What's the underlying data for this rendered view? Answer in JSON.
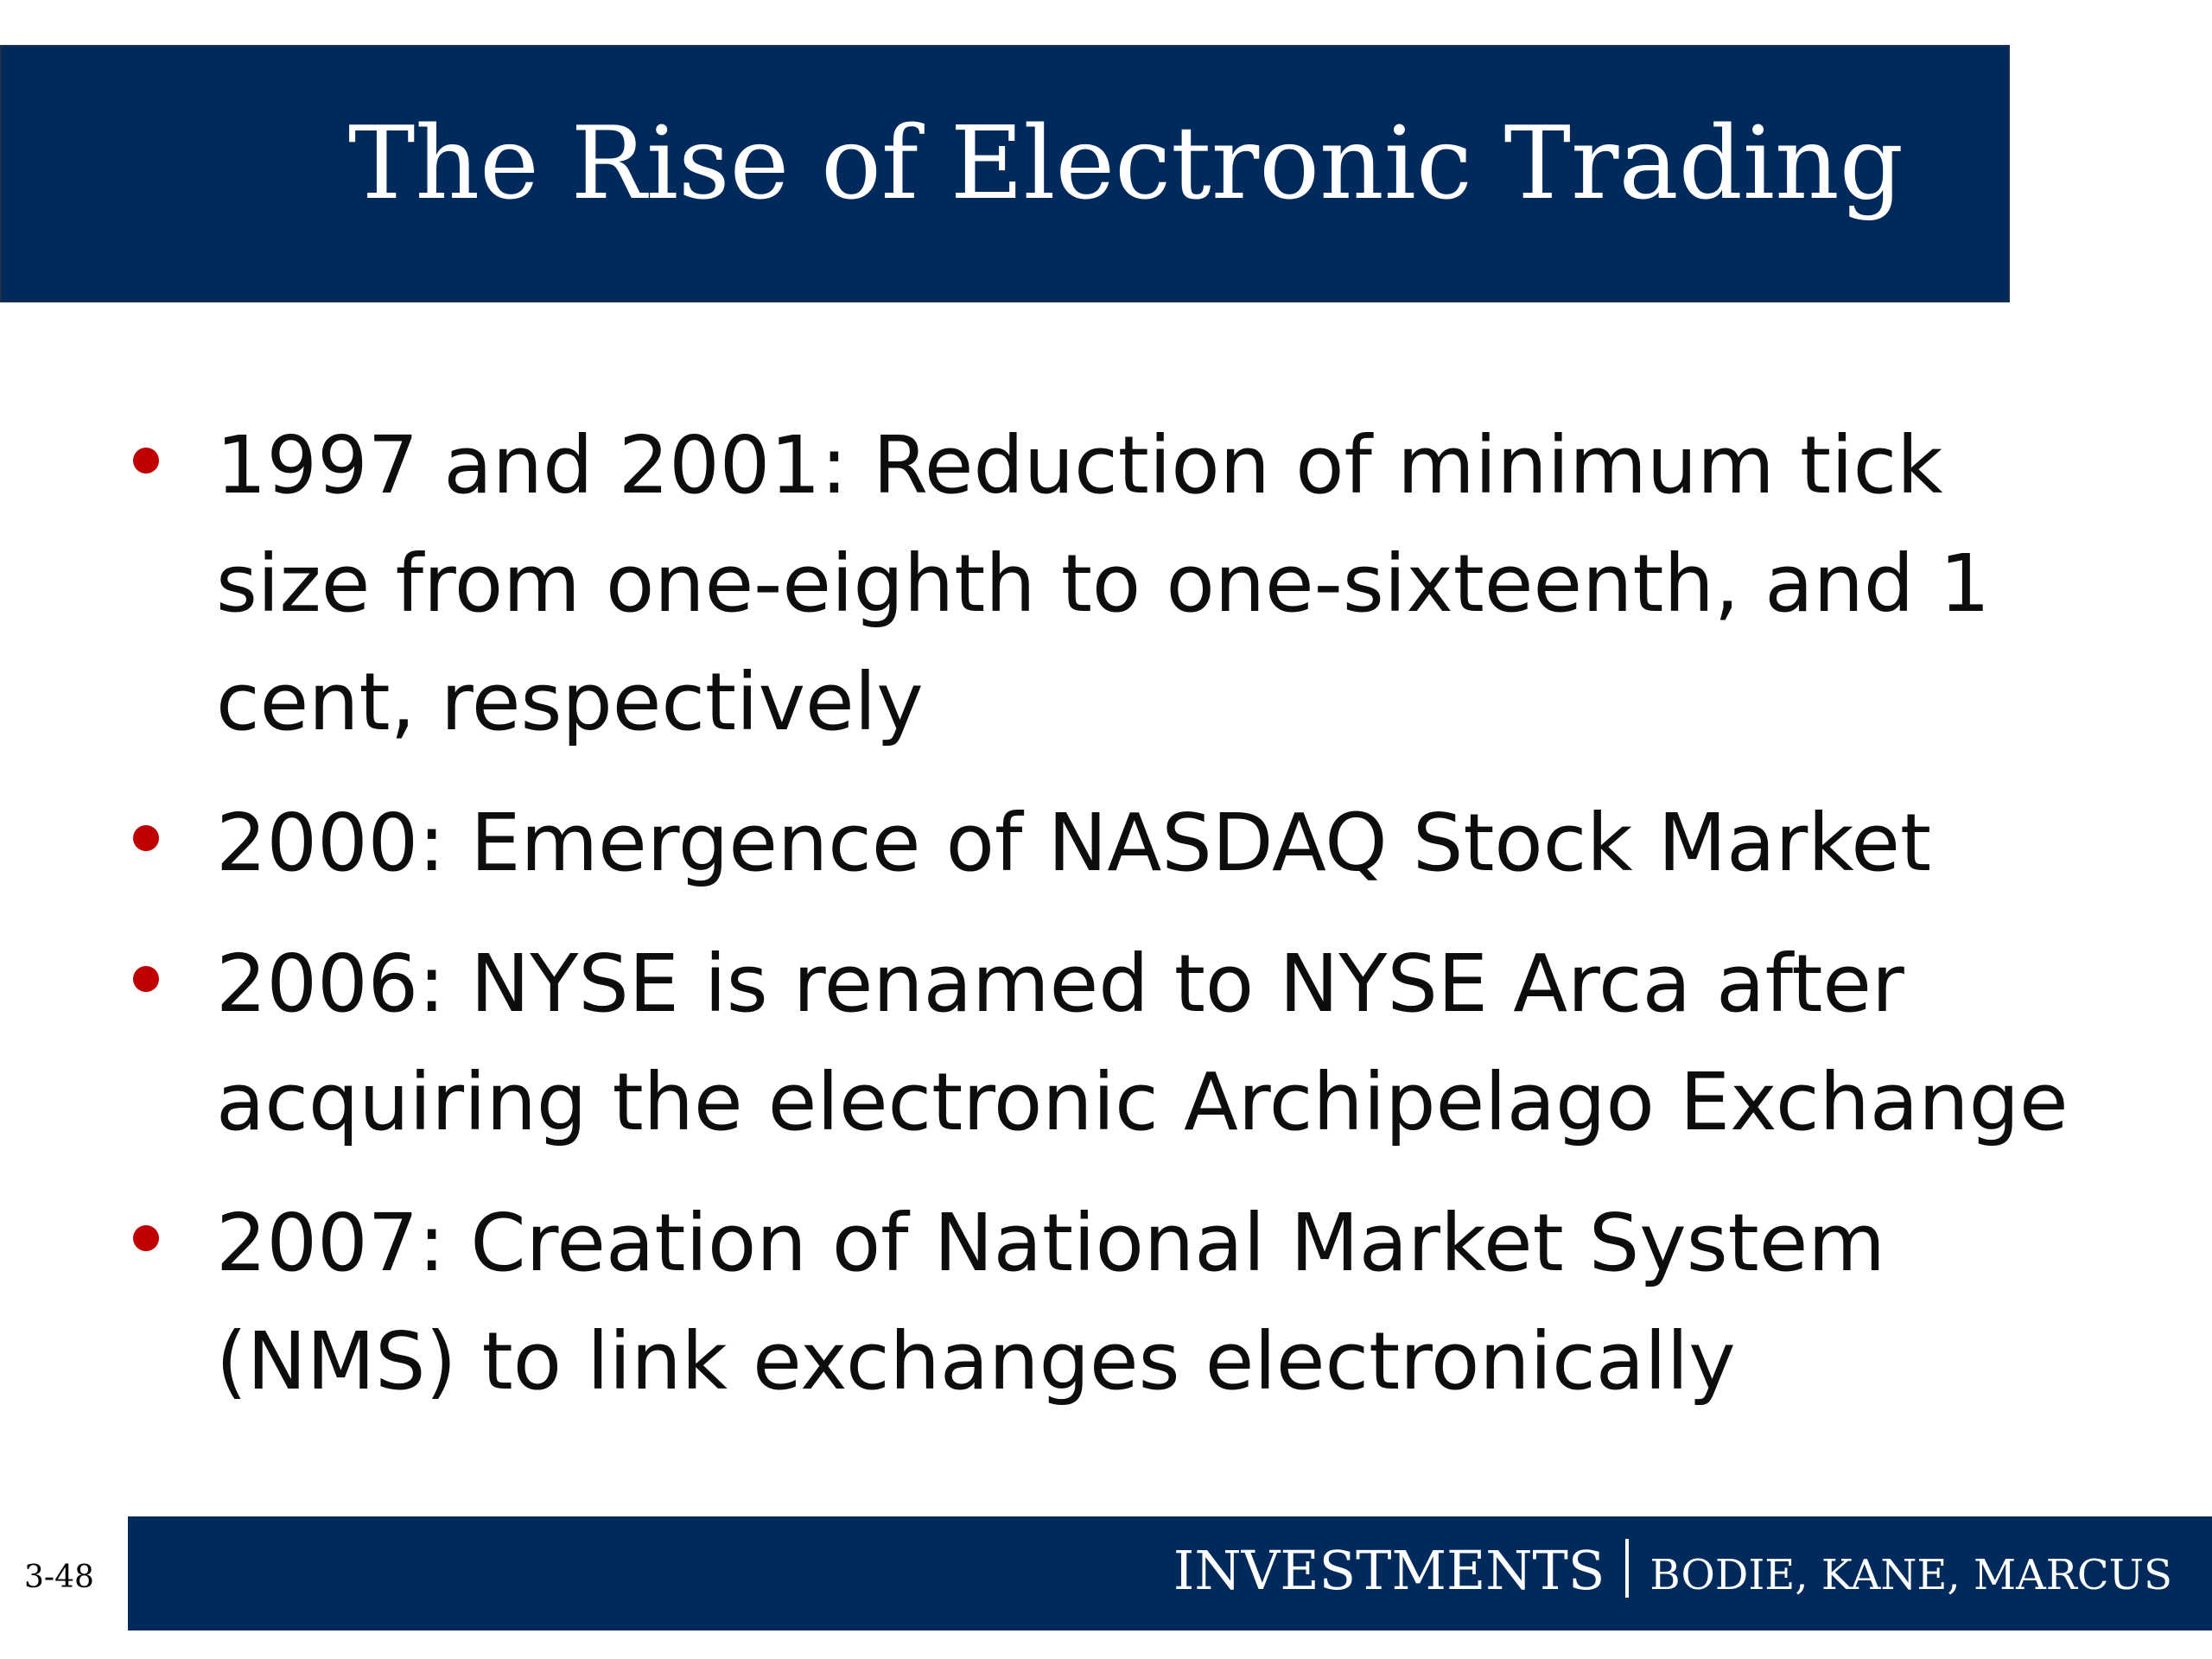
{
  "slide": {
    "title": "The Rise of Electronic Trading",
    "bullet_color": "#c00000",
    "bullets": [
      {
        "text": "1997 and 2001: Reduction of minimum tick size from one-eighth to one-sixteenth, and 1 cent, respectively"
      },
      {
        "text": "2000: Emergence of NASDAQ Stock Market"
      },
      {
        "text": "2006: NYSE is renamed to NYSE Arca after acquiring the electronic Archipelago Exchange"
      },
      {
        "text": "2007: Creation of National Market System (NMS) to link exchanges electronically"
      }
    ]
  },
  "footer": {
    "brand": "INVESTMENTS",
    "authors": "BODIE, KANE, MARCUS",
    "page_number": "3-48"
  },
  "colors": {
    "banner": "#002a5c",
    "text": "#0d0d0d"
  }
}
